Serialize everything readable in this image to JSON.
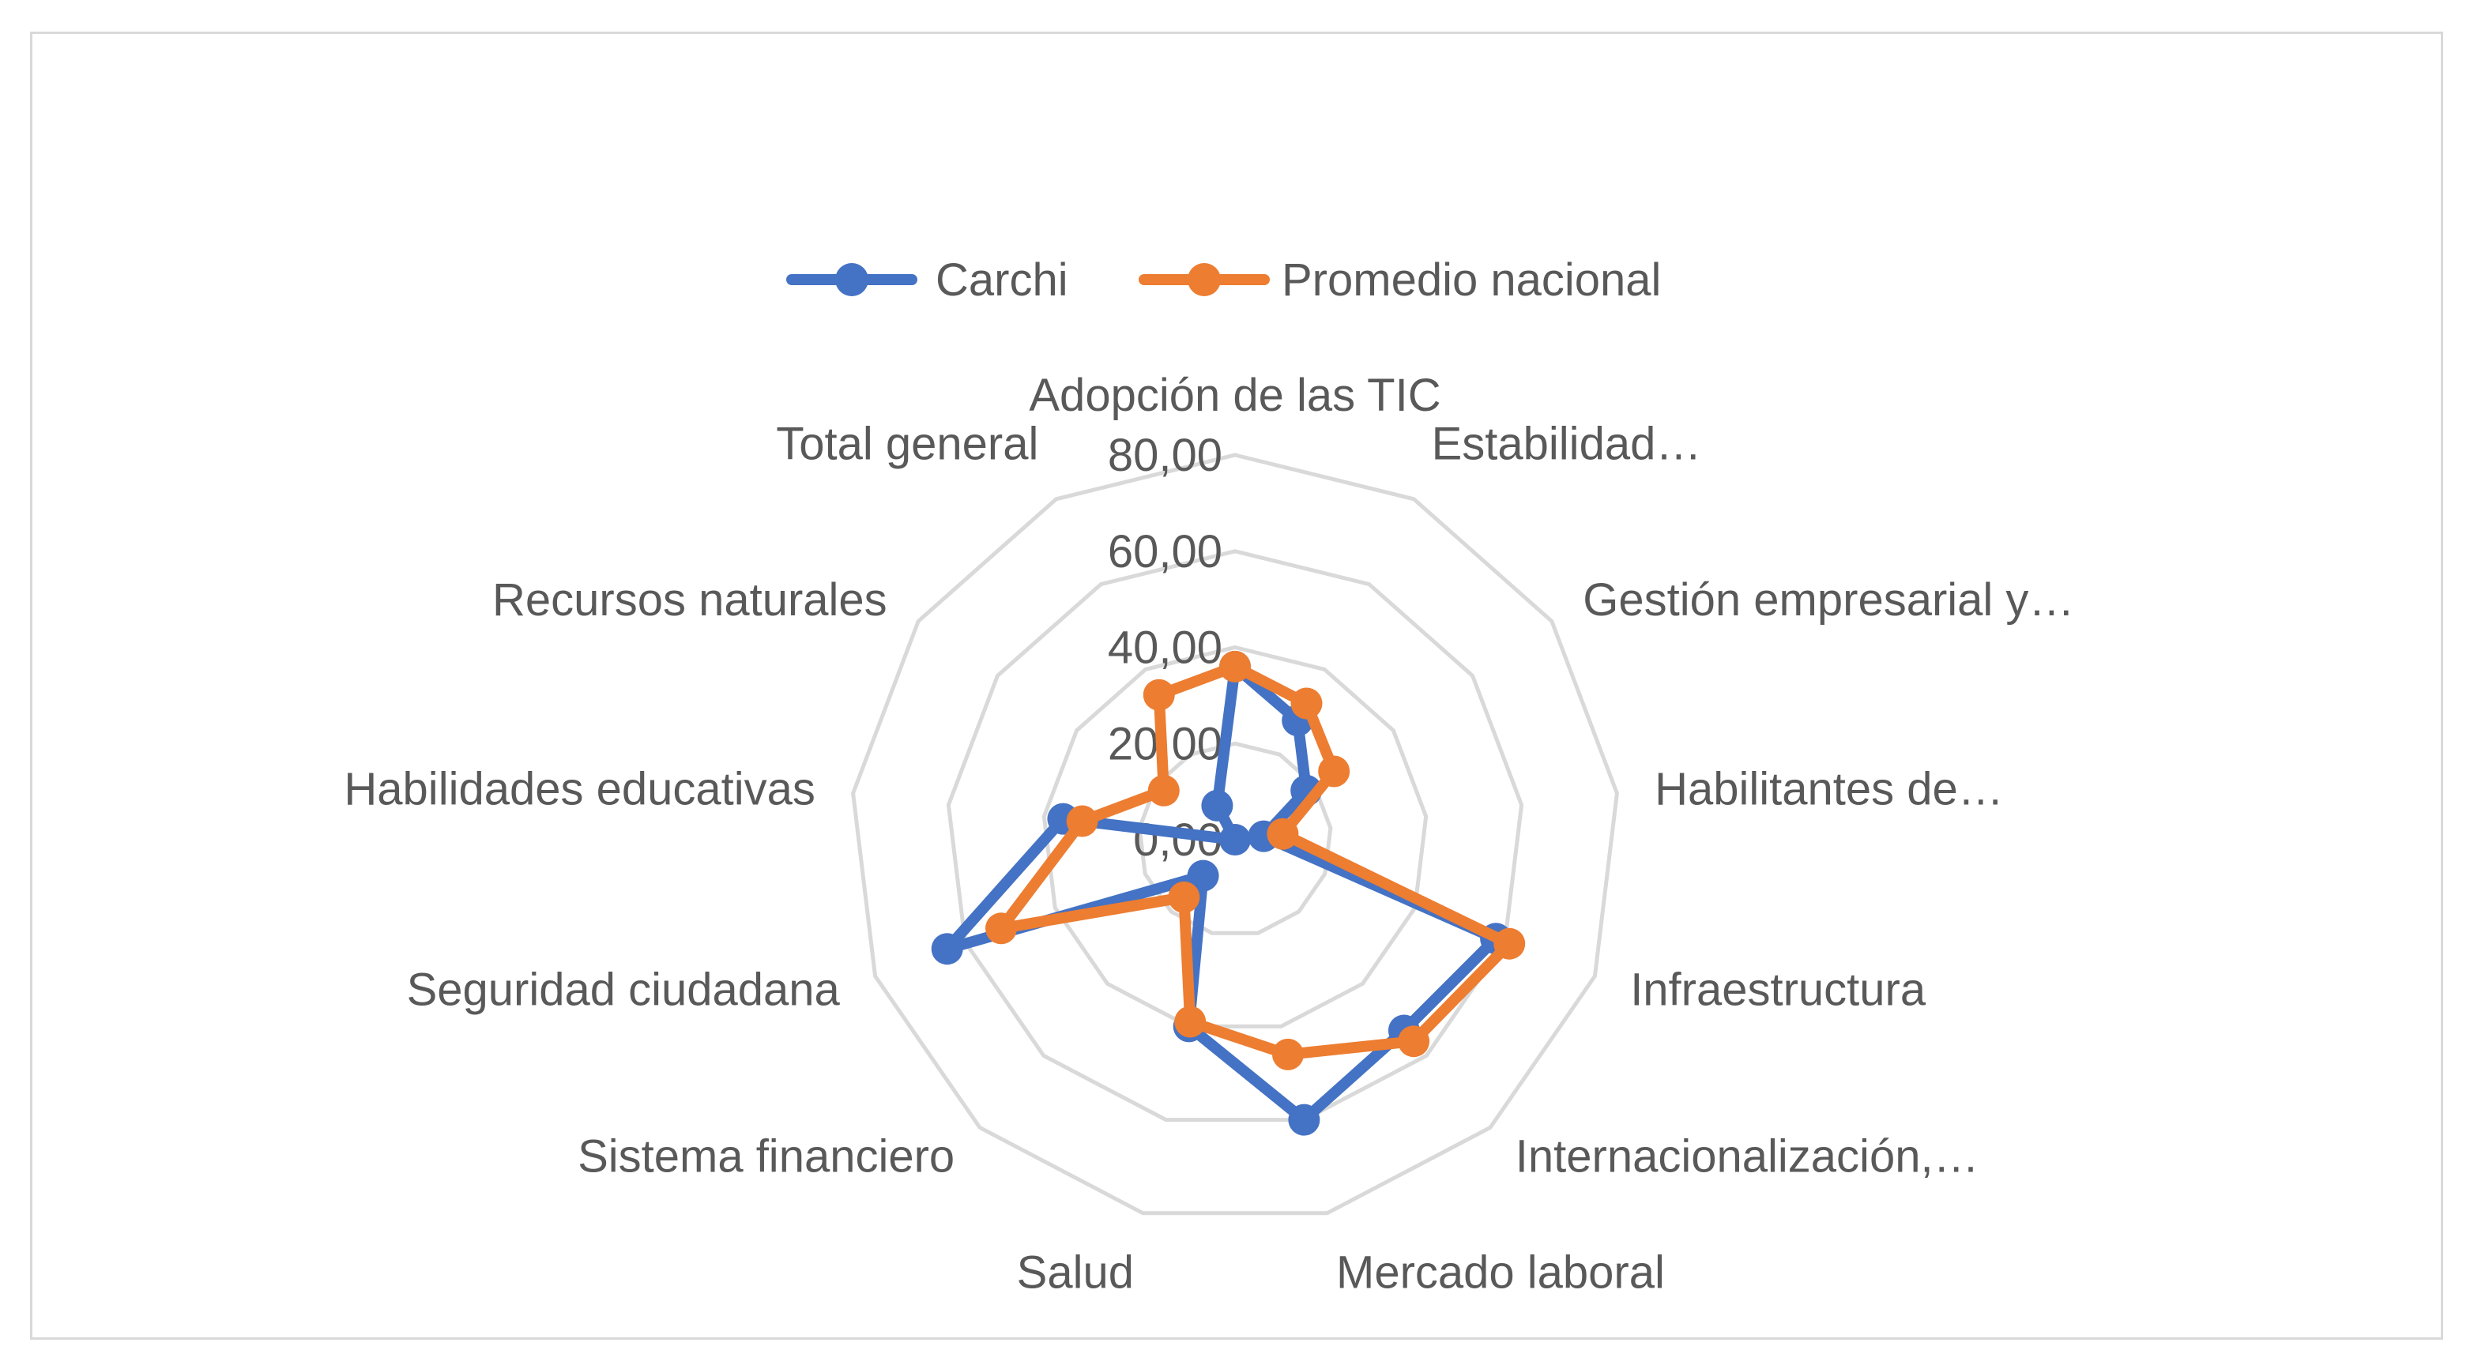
{
  "chart_data": {
    "type": "radar",
    "categories": [
      "Adopción de las TIC",
      "Estabilidad…",
      "Gestión empresarial y…",
      "Habilitantes de…",
      "Infraestructura",
      "Internacionalización,…",
      "Mercado laboral",
      "Salud",
      "Sistema financiero",
      "Seguridad ciudadana",
      "Habilidades educativas",
      "Recursos naturales",
      "Total general"
    ],
    "series": [
      {
        "name": "Carchi",
        "color": "#4472c4",
        "values": [
          36.0,
          28.0,
          18.0,
          6.0,
          58.0,
          53.0,
          60.0,
          40.0,
          10.0,
          64.0,
          36.0,
          0.0,
          8.0
        ]
      },
      {
        "name": "Promedio nacional",
        "color": "#ed7d31",
        "values": [
          36.0,
          32.0,
          25.0,
          10.0,
          61.0,
          56.0,
          46.0,
          39.0,
          16.0,
          52.0,
          32.0,
          18.0,
          34.0
        ]
      }
    ],
    "ticks": [
      "0,00",
      "20,00",
      "40,00",
      "60,00",
      "80,00"
    ],
    "rmax": 80,
    "gridline_color": "#d9d9d9",
    "legend_position": "top"
  }
}
